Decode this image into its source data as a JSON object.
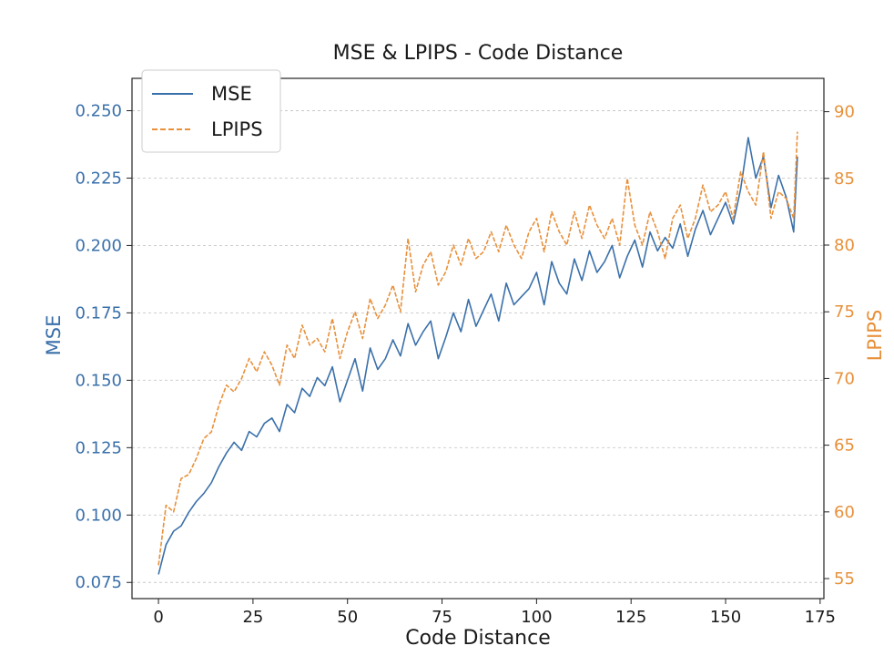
{
  "chart_data": {
    "type": "line",
    "title": "MSE & LPIPS - Code Distance",
    "xlabel": "Code Distance",
    "y1label": "MSE",
    "y2label": "LPIPS",
    "xlim": [
      -7,
      176
    ],
    "y1lim": [
      0.069,
      0.262
    ],
    "y2lim": [
      53.5,
      92.5
    ],
    "x_ticks": [
      "0",
      "25",
      "50",
      "75",
      "100",
      "125",
      "150",
      "175"
    ],
    "y1_ticks": [
      "0.075",
      "0.100",
      "0.125",
      "0.150",
      "0.175",
      "0.200",
      "0.225",
      "0.250"
    ],
    "y2_ticks": [
      "55",
      "60",
      "65",
      "70",
      "75",
      "80",
      "85",
      "90"
    ],
    "grid": "horizontal dashed",
    "legend_position": "top-left",
    "series": [
      {
        "name": "MSE",
        "axis": "left",
        "color": "#3a70aa",
        "style": "solid",
        "x": [
          0,
          2,
          4,
          6,
          8,
          10,
          12,
          14,
          16,
          18,
          20,
          22,
          24,
          26,
          28,
          30,
          32,
          34,
          36,
          38,
          40,
          42,
          44,
          46,
          48,
          50,
          52,
          54,
          56,
          58,
          60,
          62,
          64,
          66,
          68,
          70,
          72,
          74,
          76,
          78,
          80,
          82,
          84,
          86,
          88,
          90,
          92,
          94,
          96,
          98,
          100,
          102,
          104,
          106,
          108,
          110,
          112,
          114,
          116,
          118,
          120,
          122,
          124,
          126,
          128,
          130,
          132,
          134,
          136,
          138,
          140,
          142,
          144,
          146,
          148,
          150,
          152,
          154,
          156,
          158,
          160,
          162,
          164,
          166,
          168,
          169
        ],
        "values": [
          0.078,
          0.089,
          0.094,
          0.096,
          0.101,
          0.105,
          0.108,
          0.112,
          0.118,
          0.123,
          0.127,
          0.124,
          0.131,
          0.129,
          0.134,
          0.136,
          0.131,
          0.141,
          0.138,
          0.147,
          0.144,
          0.151,
          0.148,
          0.155,
          0.142,
          0.15,
          0.158,
          0.146,
          0.162,
          0.154,
          0.158,
          0.165,
          0.159,
          0.171,
          0.163,
          0.168,
          0.172,
          0.158,
          0.166,
          0.175,
          0.168,
          0.18,
          0.17,
          0.176,
          0.182,
          0.172,
          0.186,
          0.178,
          0.181,
          0.184,
          0.19,
          0.178,
          0.194,
          0.186,
          0.182,
          0.195,
          0.187,
          0.198,
          0.19,
          0.194,
          0.2,
          0.188,
          0.196,
          0.202,
          0.192,
          0.205,
          0.198,
          0.203,
          0.199,
          0.208,
          0.196,
          0.206,
          0.213,
          0.204,
          0.21,
          0.216,
          0.208,
          0.221,
          0.24,
          0.225,
          0.233,
          0.214,
          0.226,
          0.218,
          0.205,
          0.233
        ]
      },
      {
        "name": "LPIPS",
        "axis": "right",
        "color": "#e8903a",
        "style": "dashed",
        "x": [
          0,
          2,
          4,
          6,
          8,
          10,
          12,
          14,
          16,
          18,
          20,
          22,
          24,
          26,
          28,
          30,
          32,
          34,
          36,
          38,
          40,
          42,
          44,
          46,
          48,
          50,
          52,
          54,
          56,
          58,
          60,
          62,
          64,
          66,
          68,
          70,
          72,
          74,
          76,
          78,
          80,
          82,
          84,
          86,
          88,
          90,
          92,
          94,
          96,
          98,
          100,
          102,
          104,
          106,
          108,
          110,
          112,
          114,
          116,
          118,
          120,
          122,
          124,
          126,
          128,
          130,
          132,
          134,
          136,
          138,
          140,
          142,
          144,
          146,
          148,
          150,
          152,
          154,
          156,
          158,
          160,
          162,
          164,
          166,
          168,
          169
        ],
        "values": [
          56.0,
          60.5,
          60.0,
          62.5,
          62.8,
          64.0,
          65.5,
          66.0,
          68.0,
          69.5,
          69.0,
          70.0,
          71.5,
          70.5,
          72.0,
          71.0,
          69.5,
          72.5,
          71.5,
          74.0,
          72.5,
          73.0,
          72.0,
          74.5,
          71.5,
          73.5,
          75.0,
          73.0,
          76.0,
          74.5,
          75.5,
          77.0,
          75.0,
          80.5,
          76.5,
          78.5,
          79.5,
          77.0,
          78.0,
          80.0,
          78.5,
          80.5,
          79.0,
          79.5,
          81.0,
          79.5,
          81.5,
          80.0,
          79.0,
          81.0,
          82.0,
          79.5,
          82.5,
          81.0,
          80.0,
          82.5,
          80.5,
          83.0,
          81.5,
          80.5,
          82.0,
          80.0,
          85.0,
          81.5,
          80.0,
          82.5,
          81.0,
          79.0,
          82.0,
          83.0,
          80.5,
          82.0,
          84.5,
          82.5,
          83.0,
          84.0,
          82.0,
          85.5,
          84.0,
          83.0,
          87.0,
          82.0,
          84.0,
          83.5,
          82.0,
          88.5
        ]
      }
    ]
  }
}
